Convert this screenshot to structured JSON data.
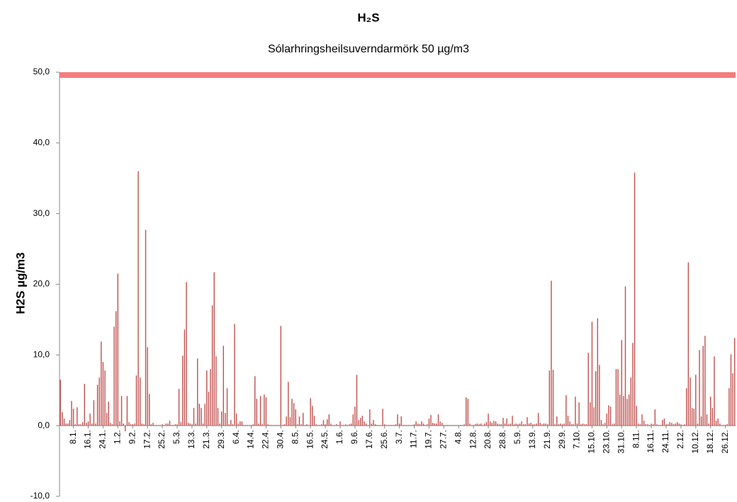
{
  "chart_data": {
    "type": "bar",
    "title": "H₂S",
    "subtitle": "Sólarhringsheilsuverndarmörk 50 µg/m3",
    "y_label": "H2S µg/m3",
    "color": "#c0504d",
    "threshold": 50,
    "threshold_color": "#f47c7c",
    "ylim": [
      -10,
      50
    ],
    "yticks": [
      {
        "value": -10,
        "label": "-10,0"
      },
      {
        "value": 0,
        "label": "0,0"
      },
      {
        "value": 10,
        "label": "10,0"
      },
      {
        "value": 20,
        "label": "20,0"
      },
      {
        "value": 30,
        "label": "30,0"
      },
      {
        "value": 40,
        "label": "40,0"
      },
      {
        "value": 50,
        "label": "50,0"
      }
    ],
    "categories": [
      null,
      null,
      null,
      null,
      null,
      null,
      null,
      "8.1.",
      null,
      null,
      null,
      null,
      null,
      null,
      null,
      "16.1.",
      null,
      null,
      null,
      null,
      null,
      null,
      null,
      "24.1.",
      null,
      null,
      null,
      null,
      null,
      null,
      null,
      "1.2.",
      null,
      null,
      null,
      null,
      null,
      null,
      null,
      "9.2.",
      null,
      null,
      null,
      null,
      null,
      null,
      null,
      "17.2.",
      null,
      null,
      null,
      null,
      null,
      null,
      null,
      "25.2.",
      null,
      null,
      null,
      null,
      null,
      null,
      null,
      "5.3.",
      null,
      null,
      null,
      null,
      null,
      null,
      null,
      "13.3.",
      null,
      null,
      null,
      null,
      null,
      null,
      null,
      "21.3.",
      null,
      null,
      null,
      null,
      null,
      null,
      null,
      "29.3.",
      null,
      null,
      null,
      null,
      null,
      null,
      null,
      "6.4.",
      null,
      null,
      null,
      null,
      null,
      null,
      null,
      "14.4.",
      null,
      null,
      null,
      null,
      null,
      null,
      null,
      "22.4.",
      null,
      null,
      null,
      null,
      null,
      null,
      null,
      "30.4.",
      null,
      null,
      null,
      null,
      null,
      null,
      null,
      "8.5.",
      null,
      null,
      null,
      null,
      null,
      null,
      null,
      "16.5.",
      null,
      null,
      null,
      null,
      null,
      null,
      null,
      "24.5.",
      null,
      null,
      null,
      null,
      null,
      null,
      null,
      "1.6.",
      null,
      null,
      null,
      null,
      null,
      null,
      null,
      "9.6.",
      null,
      null,
      null,
      null,
      null,
      null,
      null,
      "17.6.",
      null,
      null,
      null,
      null,
      null,
      null,
      null,
      "25.6.",
      null,
      null,
      null,
      null,
      null,
      null,
      null,
      "3.7.",
      null,
      null,
      null,
      null,
      null,
      null,
      null,
      "11.7.",
      null,
      null,
      null,
      null,
      null,
      null,
      null,
      "19.7.",
      null,
      null,
      null,
      null,
      null,
      null,
      null,
      "27.7.",
      null,
      null,
      null,
      null,
      null,
      null,
      null,
      "4.8.",
      null,
      null,
      null,
      null,
      null,
      null,
      null,
      "12.8.",
      null,
      null,
      null,
      null,
      null,
      null,
      null,
      "20.8.",
      null,
      null,
      null,
      null,
      null,
      null,
      null,
      "28.8.",
      null,
      null,
      null,
      null,
      null,
      null,
      null,
      "5.9.",
      null,
      null,
      null,
      null,
      null,
      null,
      null,
      "13.9.",
      null,
      null,
      null,
      null,
      null,
      null,
      null,
      "21.9.",
      null,
      null,
      null,
      null,
      null,
      null,
      null,
      "29.9.",
      null,
      null,
      null,
      null,
      null,
      null,
      null,
      "7.10.",
      null,
      null,
      null,
      null,
      null,
      null,
      null,
      "15.10.",
      null,
      null,
      null,
      null,
      null,
      null,
      null,
      "23.10.",
      null,
      null,
      null,
      null,
      null,
      null,
      null,
      "31.10.",
      null,
      null,
      null,
      null,
      null,
      null,
      null,
      "8.11.",
      null,
      null,
      null,
      null,
      null,
      null,
      null,
      "16.11.",
      null,
      null,
      null,
      null,
      null,
      null,
      null,
      "24.11.",
      null,
      null,
      null,
      null,
      null,
      null,
      null,
      "2.12.",
      null,
      null,
      null,
      null,
      null,
      null,
      null,
      "10.12.",
      null,
      null,
      null,
      null,
      null,
      null,
      null,
      "18.12.",
      null,
      null,
      null,
      null,
      null,
      null,
      null,
      "26.12.",
      null,
      null,
      null,
      null,
      null
    ],
    "values": [
      6.5,
      1.9,
      1.0,
      0.3,
      0.3,
      0.8,
      3.5,
      2.4,
      0.2,
      2.6,
      0.2,
      0.2,
      0.5,
      5.9,
      0.4,
      0.6,
      1.7,
      0.3,
      3.6,
      0.3,
      5.8,
      6.8,
      11.9,
      9.0,
      7.8,
      1.8,
      3.4,
      0.4,
      0.2,
      14.0,
      16.2,
      21.5,
      0.6,
      4.2,
      0.3,
      -0.8,
      4.2,
      0.5,
      0.2,
      0.2,
      0.3,
      7.1,
      36.0,
      6.8,
      0.3,
      0.2,
      27.7,
      11.1,
      4.5,
      0.2,
      0.4,
      0.1,
      0.1,
      0.1,
      0.1,
      0.2,
      0.1,
      0.3,
      0.3,
      0.7,
      0.1,
      0.1,
      0.2,
      0.2,
      5.2,
      0.5,
      9.9,
      13.6,
      20.3,
      0.4,
      0.3,
      0.2,
      2.5,
      0.3,
      9.5,
      3.1,
      2.5,
      0.3,
      3.1,
      7.8,
      4.8,
      8.0,
      17.0,
      21.7,
      9.8,
      2.5,
      0.3,
      2.0,
      11.3,
      1.8,
      5.3,
      0.2,
      0.8,
      0.2,
      14.4,
      1.7,
      0.3,
      0.6,
      0.6,
      0.1,
      0.1,
      0.1,
      0.1,
      0.1,
      0.2,
      7.0,
      3.8,
      0.3,
      4.2,
      0.2,
      4.4,
      4.0,
      0.2,
      0.1,
      0.1,
      0.1,
      0.1,
      0.1,
      0.1,
      14.1,
      0.1,
      0.2,
      1.3,
      6.2,
      1.2,
      3.8,
      3.2,
      2.3,
      0.2,
      1.3,
      0.2,
      1.8,
      0.1,
      0.2,
      0.1,
      3.9,
      2.8,
      1.4,
      0.2,
      0.1,
      0.1,
      0.2,
      0.8,
      0.2,
      0.9,
      1.6,
      0.3,
      0.1,
      0.1,
      0.2,
      0.1,
      0.6,
      0.1,
      0.1,
      0.2,
      0.1,
      0.2,
      0.3,
      1.6,
      2.7,
      7.2,
      0.8,
      1.1,
      1.4,
      0.6,
      0.3,
      0.1,
      2.3,
      0.3,
      0.8,
      0.2,
      0.1,
      0.1,
      0.1,
      2.4,
      0.2,
      0.1,
      0.1,
      0.1,
      0.1,
      0.1,
      0.2,
      1.6,
      0.3,
      1.3,
      0.1,
      0.1,
      0.1,
      0.1,
      0.1,
      0.1,
      0.2,
      0.6,
      0.3,
      0.2,
      0.6,
      0.3,
      0.1,
      0.2,
      1.0,
      1.5,
      0.4,
      0.3,
      0.3,
      1.6,
      0.6,
      0.4,
      0.1,
      0.1,
      0.1,
      0.1,
      0.1,
      0.1,
      0.1,
      0.1,
      0.1,
      0.1,
      0.1,
      0.2,
      4.0,
      3.8,
      0.3,
      0.1,
      0.1,
      0.2,
      0.3,
      0.2,
      0.3,
      0.1,
      0.3,
      0.5,
      1.7,
      0.6,
      0.4,
      0.7,
      0.6,
      0.3,
      0.2,
      0.2,
      1.1,
      0.3,
      1.0,
      0.2,
      0.3,
      1.4,
      0.2,
      0.3,
      0.2,
      0.3,
      0.6,
      0.2,
      0.2,
      1.2,
      0.3,
      0.4,
      0.2,
      0.2,
      0.3,
      1.8,
      0.4,
      0.2,
      0.3,
      0.3,
      0.2,
      7.8,
      20.5,
      7.9,
      0.2,
      1.3,
      0.2,
      0.3,
      0.2,
      0.3,
      4.3,
      1.4,
      0.6,
      0.2,
      0.2,
      4.1,
      0.3,
      3.3,
      0.2,
      0.3,
      0.2,
      0.2,
      10.3,
      3.3,
      14.7,
      2.6,
      7.7,
      15.2,
      8.6,
      0.8,
      0.2,
      0.4,
      1.7,
      2.9,
      2.7,
      0.2,
      0.3,
      8.0,
      8.0,
      4.4,
      12.1,
      4.2,
      19.7,
      3.8,
      4.4,
      6.8,
      11.7,
      35.8,
      2.8,
      0.3,
      0.2,
      1.6,
      0.7,
      0.2,
      0.2,
      0.1,
      0.3,
      0.2,
      2.3,
      0.2,
      0.1,
      0.1,
      0.8,
      1.0,
      0.2,
      0.2,
      0.5,
      0.4,
      0.2,
      0.3,
      0.5,
      0.3,
      0.2,
      0.1,
      0.2,
      5.3,
      23.1,
      6.8,
      2.5,
      2.4,
      7.2,
      0.3,
      10.7,
      1.3,
      11.3,
      12.7,
      1.6,
      0.3,
      4.1,
      2.5,
      9.8,
      0.7,
      1.0,
      0.3,
      0.1,
      0.1,
      0.1,
      0.2,
      5.3,
      10.1,
      7.4,
      12.4
    ]
  }
}
